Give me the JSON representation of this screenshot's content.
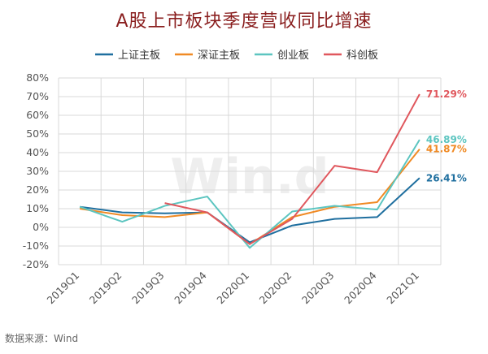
{
  "chart_data": {
    "type": "line",
    "title": "A股上市板块季度营收同比增速",
    "source": "数据来源：Wind",
    "watermark": "Win.d",
    "categories": [
      "2019Q1",
      "2019Q2",
      "2019Q3",
      "2019Q4",
      "2020Q1",
      "2020Q2",
      "2020Q3",
      "2020Q4",
      "2021Q1"
    ],
    "y_ticks": [
      "80%",
      "70%",
      "60%",
      "50%",
      "40%",
      "30%",
      "20%",
      "10%",
      "0%",
      "-10%",
      "-20%"
    ],
    "ylim": [
      -20,
      80
    ],
    "y_unit": "%",
    "grid": true,
    "legend_position": "top",
    "series": [
      {
        "name": "上证主板",
        "color": "#1f6f9f",
        "values": [
          11,
          8,
          7.5,
          8,
          -8,
          1,
          4.5,
          5.5,
          26.41
        ],
        "end_label": "26.41%"
      },
      {
        "name": "深证主板",
        "color": "#f08a24",
        "values": [
          10,
          6.5,
          5.5,
          8,
          -9,
          5.5,
          11,
          13.5,
          41.87
        ],
        "end_label": "41.87%"
      },
      {
        "name": "创业板",
        "color": "#5cc5c0",
        "values": [
          11,
          3,
          11.5,
          16.5,
          -11,
          8.5,
          11.5,
          9.5,
          46.89
        ],
        "end_label": "46.89%"
      },
      {
        "name": "科创板",
        "color": "#e0575d",
        "values": [
          null,
          null,
          13,
          8,
          -9,
          4.5,
          33,
          29.5,
          71.29
        ],
        "end_label": "71.29%"
      }
    ]
  }
}
